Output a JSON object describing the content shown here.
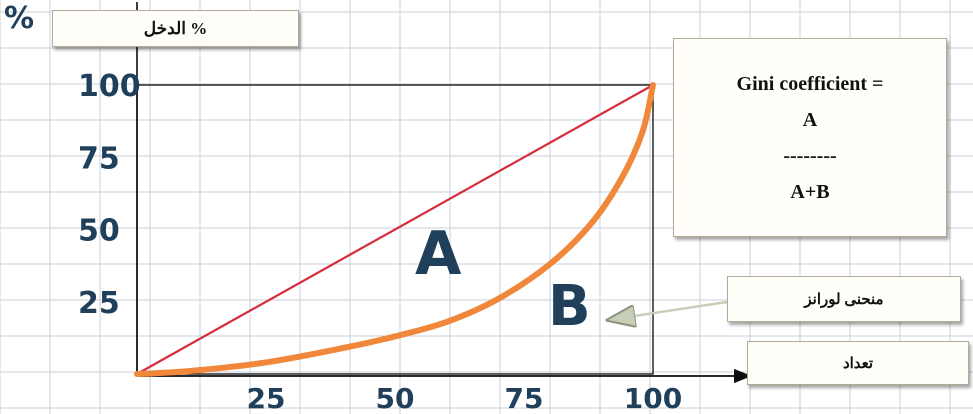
{
  "y_axis_label": "% الدخل",
  "y_axis_unit_mark": "%",
  "x_axis_label": "تعداد",
  "lorenz_label": "منحنی لورانز",
  "gini_formula": {
    "line1": "Gini coefficient =",
    "numerator": "A",
    "divider": "--------",
    "denominator": "A+B"
  },
  "region_labels": {
    "A": "A",
    "B": "B"
  },
  "y_ticks": [
    "100",
    "75",
    "50",
    "25"
  ],
  "x_ticks": [
    "25",
    "50",
    "75",
    "100"
  ],
  "colors": {
    "equality_line": "#d62b3a",
    "lorenz_curve": "#f0873a",
    "handwriting": "#1f3f5a",
    "grid": "#c9d0d8"
  },
  "chart_data": {
    "type": "line",
    "xlim": [
      0,
      100
    ],
    "ylim": [
      0,
      100
    ],
    "x_ticks": [
      25,
      50,
      75,
      100
    ],
    "y_ticks": [
      25,
      50,
      75,
      100
    ],
    "grid": true,
    "series": [
      {
        "x": [
          0,
          100
        ],
        "y": [
          0,
          100
        ]
      },
      {
        "name": "منحنی لورانز",
        "x": [
          0,
          10,
          25,
          40,
          50,
          60,
          70,
          80,
          88,
          94,
          98,
          100
        ],
        "y": [
          0,
          1,
          4,
          9,
          13,
          18,
          26,
          38,
          52,
          68,
          84,
          100
        ]
      }
    ]
  }
}
